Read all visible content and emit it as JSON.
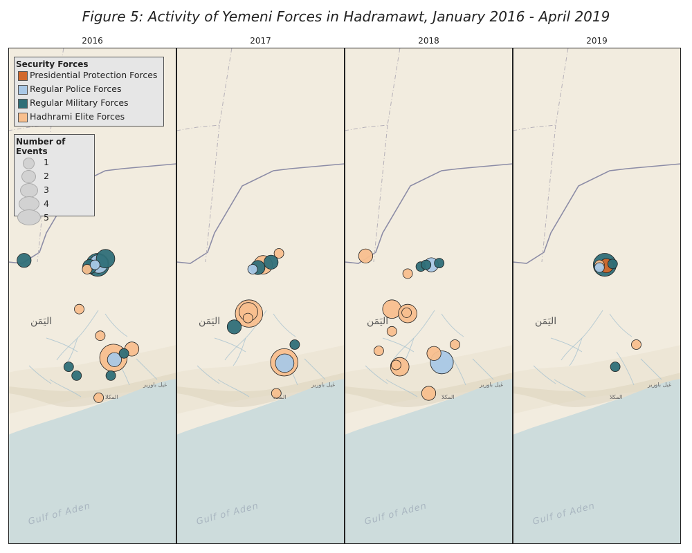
{
  "title": "Figure 5: Activity of Yemeni Forces in Hadramawt, January 2016 - April 2019",
  "map_labels": {
    "country": "اليَمَن",
    "sea": "Gulf of Aden",
    "town_east": "غيل باوزير",
    "town_coast": "المكلا"
  },
  "colors": {
    "land": "#f2ecdf",
    "sea": "#cddcdc",
    "border_line": "#8c8ca6",
    "presidential": "#d2692d",
    "police": "#a9c8e6",
    "military": "#2f6f78",
    "elite": "#f8bf8e"
  },
  "legend": {
    "forces_title": "Security Forces",
    "forces": [
      {
        "key": "presidential",
        "label": "Presidential Protection Forces"
      },
      {
        "key": "police",
        "label": "Regular Police Forces"
      },
      {
        "key": "military",
        "label": "Regular Military Forces"
      },
      {
        "key": "elite",
        "label": "Hadhrami Elite Forces"
      }
    ],
    "size_title": "Number of Events",
    "sizes": [
      "1",
      "2",
      "3",
      "4",
      "5"
    ]
  },
  "panels": [
    {
      "year": "2016",
      "events": [
        {
          "lon": 48.1,
          "lat": 16.5,
          "force": "military",
          "count": 1
        },
        {
          "lon": 47.3,
          "lat": 15.9,
          "force": "military",
          "count": 2
        },
        {
          "lon": 48.5,
          "lat": 15.8,
          "force": "elite",
          "count": 1
        },
        {
          "lon": 48.55,
          "lat": 15.83,
          "force": "military",
          "count": 2
        },
        {
          "lon": 48.7,
          "lat": 15.85,
          "force": "military",
          "count": 4
        },
        {
          "lon": 48.72,
          "lat": 15.86,
          "force": "police",
          "count": 3
        },
        {
          "lon": 48.85,
          "lat": 15.92,
          "force": "military",
          "count": 3
        },
        {
          "lon": 48.65,
          "lat": 15.85,
          "force": "police",
          "count": 1
        },
        {
          "lon": 48.35,
          "lat": 15.35,
          "force": "elite",
          "count": 1
        },
        {
          "lon": 48.75,
          "lat": 15.05,
          "force": "elite",
          "count": 1
        },
        {
          "lon": 48.15,
          "lat": 14.7,
          "force": "military",
          "count": 1
        },
        {
          "lon": 48.3,
          "lat": 14.6,
          "force": "military",
          "count": 1
        },
        {
          "lon": 49.0,
          "lat": 14.8,
          "force": "elite",
          "count": 5
        },
        {
          "lon": 49.02,
          "lat": 14.78,
          "force": "police",
          "count": 2
        },
        {
          "lon": 49.2,
          "lat": 14.85,
          "force": "military",
          "count": 1
        },
        {
          "lon": 49.35,
          "lat": 14.9,
          "force": "elite",
          "count": 2
        },
        {
          "lon": 48.95,
          "lat": 14.6,
          "force": "military",
          "count": 1
        },
        {
          "lon": 48.72,
          "lat": 14.35,
          "force": "elite",
          "count": 1
        }
      ]
    },
    {
      "year": "2017",
      "events": [
        {
          "lon": 48.65,
          "lat": 15.85,
          "force": "elite",
          "count": 3
        },
        {
          "lon": 48.55,
          "lat": 15.82,
          "force": "military",
          "count": 2
        },
        {
          "lon": 48.45,
          "lat": 15.8,
          "force": "police",
          "count": 1
        },
        {
          "lon": 48.8,
          "lat": 15.88,
          "force": "military",
          "count": 2
        },
        {
          "lon": 48.95,
          "lat": 15.98,
          "force": "elite",
          "count": 1
        },
        {
          "lon": 48.38,
          "lat": 15.3,
          "force": "elite",
          "count": 5
        },
        {
          "lon": 48.37,
          "lat": 15.32,
          "force": "elite",
          "count": 3
        },
        {
          "lon": 48.36,
          "lat": 15.25,
          "force": "elite",
          "count": 1
        },
        {
          "lon": 48.1,
          "lat": 15.15,
          "force": "military",
          "count": 2
        },
        {
          "lon": 49.05,
          "lat": 14.75,
          "force": "elite",
          "count": 5
        },
        {
          "lon": 49.06,
          "lat": 14.74,
          "force": "police",
          "count": 3
        },
        {
          "lon": 49.25,
          "lat": 14.95,
          "force": "military",
          "count": 1
        },
        {
          "lon": 48.9,
          "lat": 14.4,
          "force": "elite",
          "count": 1
        }
      ]
    },
    {
      "year": "2018",
      "events": [
        {
          "lon": 47.4,
          "lat": 15.95,
          "force": "elite",
          "count": 2
        },
        {
          "lon": 48.2,
          "lat": 15.75,
          "force": "elite",
          "count": 1
        },
        {
          "lon": 48.45,
          "lat": 15.83,
          "force": "military",
          "count": 1
        },
        {
          "lon": 48.55,
          "lat": 15.85,
          "force": "military",
          "count": 1
        },
        {
          "lon": 48.65,
          "lat": 15.85,
          "force": "police",
          "count": 2
        },
        {
          "lon": 48.8,
          "lat": 15.87,
          "force": "military",
          "count": 1
        },
        {
          "lon": 47.9,
          "lat": 15.35,
          "force": "elite",
          "count": 3
        },
        {
          "lon": 48.2,
          "lat": 15.3,
          "force": "elite",
          "count": 3
        },
        {
          "lon": 48.18,
          "lat": 15.31,
          "force": "elite",
          "count": 1
        },
        {
          "lon": 47.9,
          "lat": 15.1,
          "force": "elite",
          "count": 1
        },
        {
          "lon": 47.65,
          "lat": 14.88,
          "force": "elite",
          "count": 1
        },
        {
          "lon": 48.05,
          "lat": 14.7,
          "force": "elite",
          "count": 3
        },
        {
          "lon": 47.98,
          "lat": 14.72,
          "force": "elite",
          "count": 1
        },
        {
          "lon": 48.7,
          "lat": 14.85,
          "force": "elite",
          "count": 2
        },
        {
          "lon": 48.85,
          "lat": 14.75,
          "force": "police",
          "count": 4
        },
        {
          "lon": 49.1,
          "lat": 14.95,
          "force": "elite",
          "count": 1
        },
        {
          "lon": 48.6,
          "lat": 14.4,
          "force": "elite",
          "count": 2
        }
      ]
    },
    {
      "year": "2019",
      "events": [
        {
          "lon": 48.65,
          "lat": 15.85,
          "force": "elite",
          "count": 1
        },
        {
          "lon": 48.75,
          "lat": 15.85,
          "force": "military",
          "count": 4
        },
        {
          "lon": 48.65,
          "lat": 15.82,
          "force": "police",
          "count": 1
        },
        {
          "lon": 48.78,
          "lat": 15.84,
          "force": "presidential",
          "count": 2
        },
        {
          "lon": 48.9,
          "lat": 15.86,
          "force": "military",
          "count": 1
        },
        {
          "lon": 49.35,
          "lat": 14.95,
          "force": "elite",
          "count": 1
        },
        {
          "lon": 48.95,
          "lat": 14.7,
          "force": "military",
          "count": 1
        }
      ]
    }
  ]
}
